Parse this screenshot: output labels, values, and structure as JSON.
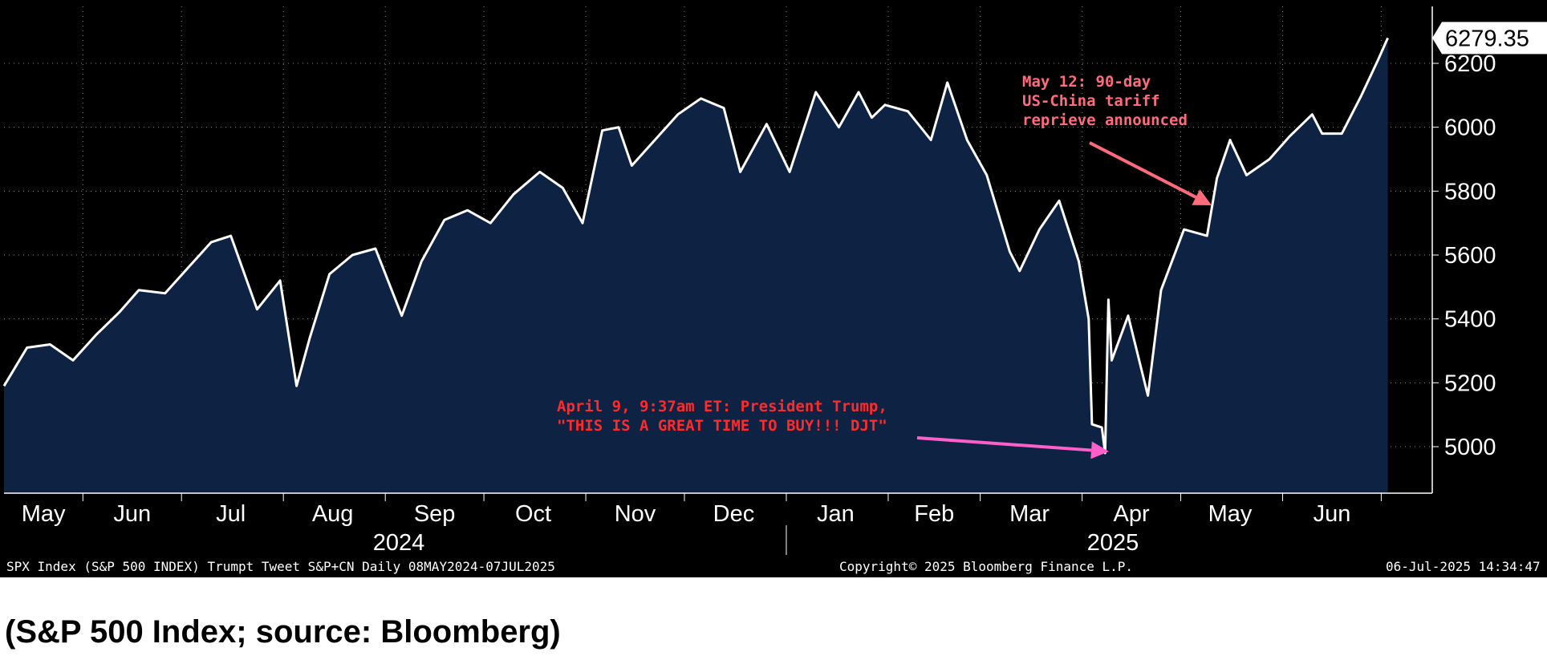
{
  "chart_data": {
    "type": "area",
    "series": [
      {
        "x": [
          "2024-05-08",
          "2024-05-15",
          "2024-05-22",
          "2024-05-29",
          "2024-06-05",
          "2024-06-12",
          "2024-06-18",
          "2024-06-26",
          "2024-07-03",
          "2024-07-10",
          "2024-07-16",
          "2024-07-24",
          "2024-07-31",
          "2024-08-05",
          "2024-08-09",
          "2024-08-15",
          "2024-08-22",
          "2024-08-29",
          "2024-09-06",
          "2024-09-12",
          "2024-09-19",
          "2024-09-26",
          "2024-10-03",
          "2024-10-10",
          "2024-10-18",
          "2024-10-25",
          "2024-10-31",
          "2024-11-06",
          "2024-11-11",
          "2024-11-15",
          "2024-11-22",
          "2024-11-29",
          "2024-12-06",
          "2024-12-13",
          "2024-12-18",
          "2024-12-26",
          "2025-01-02",
          "2025-01-10",
          "2025-01-17",
          "2025-01-23",
          "2025-01-27",
          "2025-01-31",
          "2025-02-07",
          "2025-02-14",
          "2025-02-19",
          "2025-02-25",
          "2025-03-03",
          "2025-03-10",
          "2025-03-13",
          "2025-03-19",
          "2025-03-25",
          "2025-03-31",
          "2025-04-03",
          "2025-04-04",
          "2025-04-07",
          "2025-04-08",
          "2025-04-09",
          "2025-04-10",
          "2025-04-15",
          "2025-04-21",
          "2025-04-25",
          "2025-05-02",
          "2025-05-09",
          "2025-05-12",
          "2025-05-16",
          "2025-05-21",
          "2025-05-28",
          "2025-06-03",
          "2025-06-10",
          "2025-06-13",
          "2025-06-19",
          "2025-06-25",
          "2025-06-30",
          "2025-07-03"
        ],
        "values": [
          5190,
          5310,
          5320,
          5270,
          5350,
          5420,
          5490,
          5480,
          5560,
          5640,
          5660,
          5430,
          5520,
          5190,
          5340,
          5540,
          5600,
          5620,
          5410,
          5580,
          5710,
          5740,
          5700,
          5790,
          5860,
          5810,
          5700,
          5990,
          6000,
          5880,
          5960,
          6040,
          6090,
          6060,
          5860,
          6010,
          5860,
          6110,
          6000,
          6110,
          6030,
          6070,
          6050,
          5960,
          6140,
          5960,
          5850,
          5610,
          5550,
          5680,
          5770,
          5580,
          5400,
          5070,
          5060,
          4980,
          5460,
          5270,
          5410,
          5160,
          5490,
          5680,
          5660,
          5840,
          5960,
          5850,
          5900,
          5970,
          6040,
          5980,
          5980,
          6100,
          6210,
          6279.35
        ]
      }
    ],
    "ylim": [
      4850,
      6370
    ],
    "y_ticks": [
      "5000",
      "5200",
      "5400",
      "5600",
      "5800",
      "6000",
      "6200"
    ],
    "x_ticks": [
      "May",
      "Jun",
      "Jul",
      "Aug",
      "Sep",
      "Oct",
      "Nov",
      "Dec",
      "Jan",
      "Feb",
      "Mar",
      "Apr",
      "May",
      "Jun"
    ],
    "year_labels": [
      "2024",
      "2025"
    ],
    "last_value_label": "6279.35",
    "grid": true,
    "annotations": [
      {
        "text": [
          "May 12: 90-day",
          "US-China tariff",
          "reprieve announced"
        ],
        "color": "#ff6b7a"
      },
      {
        "text": [
          "April 9, 9:37am ET: President Trump,",
          "\"THIS IS A GREAT TIME TO BUY!!! DJT\""
        ],
        "color": "#ff2a2a"
      }
    ]
  },
  "footer": {
    "left": "SPX Index (S&P 500 INDEX) Trumpt Tweet S&P+CN  Daily 08MAY2024-07JUL2025",
    "center": "Copyright© 2025 Bloomberg Finance L.P.",
    "right": "06-Jul-2025 14:34:47"
  },
  "caption": "(S&P 500 Index; source: Bloomberg)",
  "colors": {
    "background": "#000000",
    "area_fill": "#0e2244",
    "line": "#ffffff",
    "arrow_may": "#ff6b7a",
    "arrow_april": "#ff5fc8"
  }
}
